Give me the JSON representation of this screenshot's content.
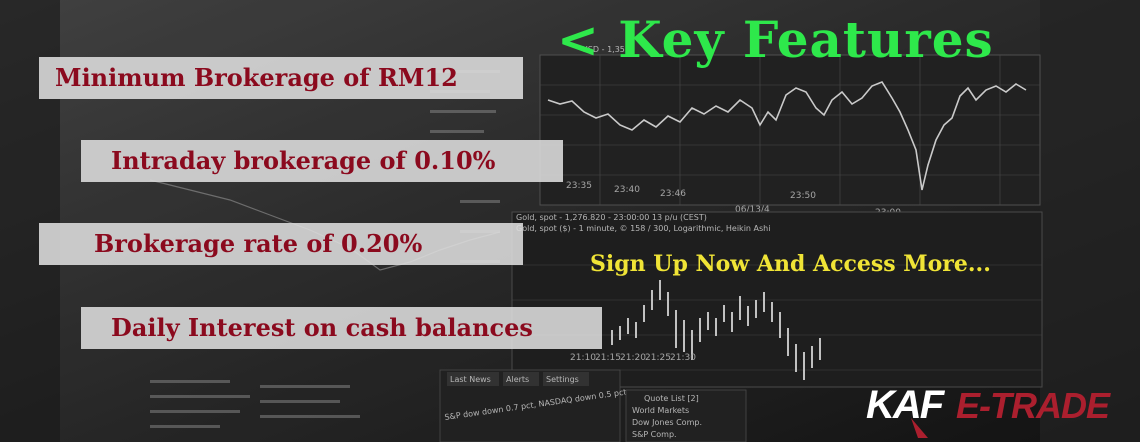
{
  "title": "< Key Features",
  "features": [
    "Minimum Brokerage of RM12",
    "Intraday brokerage of 0.10%",
    "Brokerage rate of 0.20%",
    "Daily Interest on cash balances"
  ],
  "signup_text": "Sign Up Now And Access More...",
  "logo": {
    "part1": "KAF",
    "part2": "E-TRADE"
  },
  "background_screen": {
    "chart1_header": "USD - 1,35...",
    "chart1_ticks": [
      "23:35",
      "23:40",
      "23:46",
      "23:50",
      "06/13/4",
      "23:00"
    ],
    "chart2_header": "Gold, spot - 1,276.820 - 23:00:00  13 p/u (CEST)",
    "chart2_subheader": "Gold, spot ($) - 1 minute, © 158 / 300, Logarithmic, Heikin Ashi",
    "chart2_ticks": [
      "21:10",
      "21:15",
      "21:20",
      "21:25",
      "21:30"
    ],
    "tabs": [
      "Last News",
      "Alerts",
      "Settings"
    ],
    "quote_list_title": "Quote List [2]",
    "quote_list_rows": [
      "World Markets",
      "Dow Jones Comp.",
      "S&P Comp."
    ],
    "news_ticker": "S&P dow down 0.7 pct, NASDAQ down 0.5 pct"
  },
  "colors": {
    "feature_text": "#8b0a1e",
    "feature_box": "#dedede",
    "title": "#2ee84b",
    "signup": "#f0e436",
    "logo": "#ab1f2e"
  }
}
